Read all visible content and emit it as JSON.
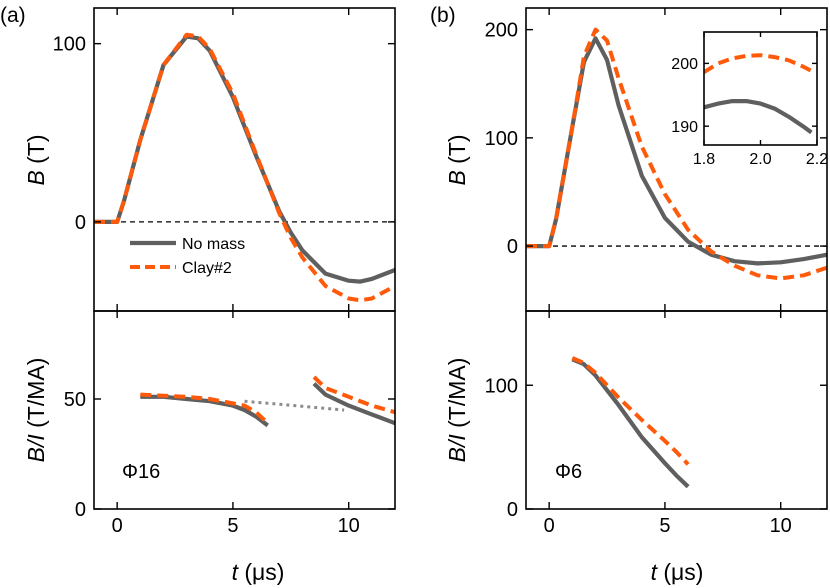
{
  "figure": {
    "panel_a_label": "(a)",
    "panel_b_label": "(b)",
    "ylabel_top_var": "B",
    "ylabel_top_unit": " (T)",
    "ylabel_bottom_var": "B/I",
    "ylabel_bottom_unit": " (T/MA)",
    "xlabel_var": "t",
    "xlabel_unit": " (μs)",
    "annotation_a": "Φ16",
    "annotation_b": "Φ6"
  },
  "colors": {
    "no_mass": "#5f5f5f",
    "clay": "#ff5a0a",
    "dotted": "#8c8c8c"
  },
  "chart_data": [
    {
      "id": "a_top",
      "type": "line",
      "xlim": [
        -1,
        12
      ],
      "ylim": [
        -50,
        120
      ],
      "xticks": [
        0,
        5,
        10
      ],
      "yticks": [
        0,
        100
      ],
      "ytick_labels": [
        "0",
        "100"
      ],
      "show_xtick_labels": false,
      "zero_line": true,
      "legend": [
        {
          "name": "No mass",
          "style": "solid"
        },
        {
          "name": "Clay#2",
          "style": "dashed"
        }
      ],
      "series": [
        {
          "name": "No mass",
          "style": "solid",
          "x": [
            -1,
            0,
            0.3,
            1,
            2,
            3,
            3.5,
            4,
            5,
            6,
            7,
            7.5,
            8,
            9,
            10,
            10.5,
            11,
            12
          ],
          "y": [
            0,
            0,
            12,
            46,
            88,
            104,
            103,
            96,
            70,
            37,
            6,
            -6,
            -16,
            -29,
            -33,
            -33.5,
            -32,
            -27
          ]
        },
        {
          "name": "Clay#2",
          "style": "dashed",
          "x": [
            -1,
            0,
            0.3,
            1,
            2,
            3,
            3.5,
            4,
            5,
            6,
            7,
            7.5,
            8,
            9,
            10,
            10.5,
            11,
            12
          ],
          "y": [
            0,
            0,
            12,
            46,
            88,
            105,
            104,
            97,
            72,
            38,
            5,
            -9,
            -20,
            -36,
            -43,
            -44,
            -43,
            -36
          ]
        }
      ]
    },
    {
      "id": "a_bottom",
      "type": "line",
      "xlim": [
        -1,
        12
      ],
      "ylim": [
        0,
        90
      ],
      "xticks": [
        0,
        5,
        10
      ],
      "xtick_labels": [
        "0",
        "5",
        "10"
      ],
      "yticks": [
        0,
        50
      ],
      "ytick_labels": [
        "0",
        "50"
      ],
      "show_xtick_labels": true,
      "series": [
        {
          "name": "No mass",
          "style": "solid",
          "x": [
            1,
            2,
            3,
            4,
            5,
            5.5,
            6,
            6.5
          ],
          "y": [
            51,
            51,
            50,
            49,
            47,
            45,
            42,
            38
          ]
        },
        {
          "name": "No mass",
          "style": "solid",
          "x": [
            8.5,
            9,
            10,
            11,
            12
          ],
          "y": [
            57,
            52,
            47,
            43,
            39
          ]
        },
        {
          "name": "Clay#2",
          "style": "dashed",
          "x": [
            1,
            2,
            3,
            4,
            5,
            5.5,
            6,
            6.5
          ],
          "y": [
            52,
            51.5,
            51,
            50,
            48,
            47,
            44,
            39
          ]
        },
        {
          "name": "Clay#2",
          "style": "dashed",
          "x": [
            8.5,
            9,
            10,
            11,
            12
          ],
          "y": [
            60,
            55,
            51,
            47,
            44
          ]
        },
        {
          "name": "",
          "style": "dotted",
          "x": [
            5.5,
            9.8
          ],
          "y": [
            49,
            45
          ]
        }
      ]
    },
    {
      "id": "b_top",
      "type": "line",
      "xlim": [
        -1,
        12
      ],
      "ylim": [
        -60,
        220
      ],
      "xticks": [
        0,
        5,
        10
      ],
      "yticks": [
        0,
        100,
        200
      ],
      "ytick_labels": [
        "0",
        "100",
        "200"
      ],
      "show_xtick_labels": false,
      "zero_line": true,
      "series": [
        {
          "name": "No mass",
          "style": "solid",
          "x": [
            -1,
            0,
            0.3,
            1,
            1.5,
            2,
            2.5,
            3,
            4,
            5,
            6,
            7,
            8,
            9,
            10,
            11,
            12
          ],
          "y": [
            0,
            0,
            25,
            110,
            170,
            192,
            172,
            130,
            65,
            26,
            4,
            -8,
            -14,
            -16,
            -15,
            -12,
            -8
          ]
        },
        {
          "name": "Clay#2",
          "style": "dashed",
          "x": [
            -1,
            0,
            0.3,
            1,
            1.5,
            2,
            2.5,
            3,
            4,
            5,
            6,
            7,
            8,
            9,
            10,
            11,
            12
          ],
          "y": [
            0,
            0,
            25,
            110,
            175,
            200,
            190,
            155,
            92,
            48,
            15,
            -5,
            -18,
            -27,
            -30,
            -27,
            -20
          ]
        }
      ]
    },
    {
      "id": "b_inset",
      "type": "line",
      "xlim": [
        1.8,
        2.2
      ],
      "ylim": [
        187,
        205
      ],
      "xticks": [
        1.8,
        2.0,
        2.2
      ],
      "xtick_labels": [
        "1.8",
        "2.0",
        "2.2"
      ],
      "yticks": [
        190,
        200
      ],
      "ytick_labels": [
        "190",
        "200"
      ],
      "show_xtick_labels": true,
      "series": [
        {
          "name": "No mass",
          "style": "solid",
          "x": [
            1.8,
            1.85,
            1.9,
            1.95,
            2.0,
            2.05,
            2.1,
            2.15,
            2.18
          ],
          "y": [
            193,
            193.6,
            194,
            194,
            193.6,
            192.8,
            191.5,
            190,
            189
          ]
        },
        {
          "name": "Clay#2",
          "style": "dashed",
          "x": [
            1.8,
            1.85,
            1.9,
            1.95,
            2.0,
            2.05,
            2.1,
            2.15,
            2.18
          ],
          "y": [
            198.6,
            200,
            200.8,
            201.2,
            201.3,
            201,
            200.5,
            199.5,
            198.8
          ]
        }
      ]
    },
    {
      "id": "b_bottom",
      "type": "line",
      "xlim": [
        -1,
        12
      ],
      "ylim": [
        0,
        160
      ],
      "xticks": [
        0,
        5,
        10
      ],
      "xtick_labels": [
        "0",
        "5",
        "10"
      ],
      "yticks": [
        0,
        100
      ],
      "ytick_labels": [
        "0",
        "100"
      ],
      "show_xtick_labels": true,
      "series": [
        {
          "name": "No mass",
          "style": "solid",
          "x": [
            1,
            1.5,
            2,
            3,
            4,
            5,
            5.5,
            6
          ],
          "y": [
            121,
            117,
            108,
            84,
            58,
            37,
            27,
            18
          ]
        },
        {
          "name": "Clay#2",
          "style": "dashed",
          "x": [
            1,
            1.5,
            2,
            3,
            4,
            5,
            5.5,
            6
          ],
          "y": [
            122,
            118,
            110,
            90,
            72,
            55,
            46,
            36
          ]
        }
      ]
    }
  ]
}
